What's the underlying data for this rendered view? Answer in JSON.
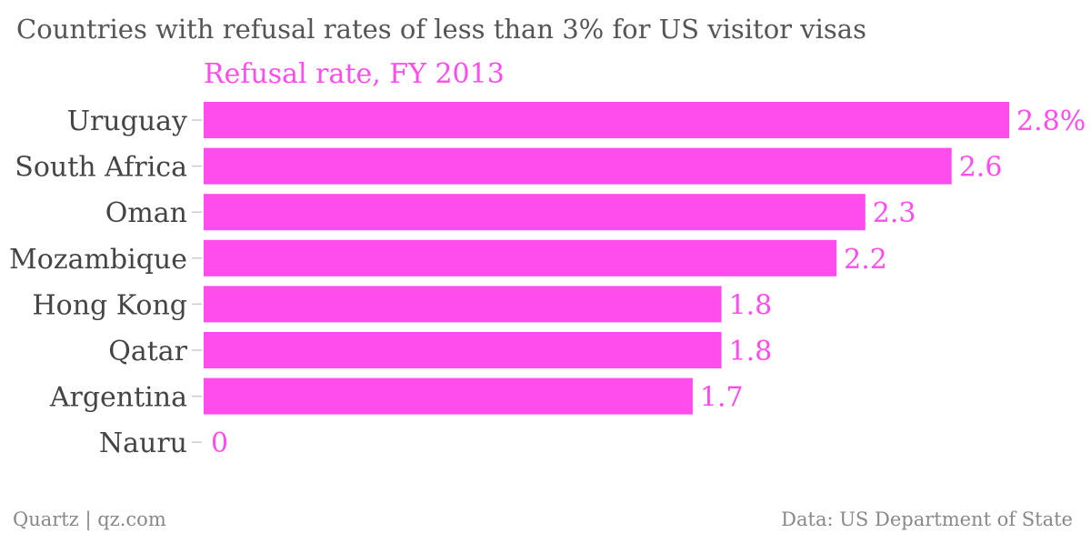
{
  "chart_data": {
    "type": "bar",
    "orientation": "horizontal",
    "title": "Countries with refusal rates of less than 3% for US visitor visas",
    "series": [
      {
        "name": "Refusal rate, FY 2013",
        "values": [
          2.8,
          2.6,
          2.3,
          2.2,
          1.8,
          1.8,
          1.7,
          0
        ]
      }
    ],
    "categories": [
      "Uruguay",
      "South Africa",
      "Oman",
      "Mozambique",
      "Hong Kong",
      "Qatar",
      "Argentina",
      "Nauru"
    ],
    "data_labels": [
      "2.8%",
      "2.6",
      "2.3",
      "2.2",
      "1.8",
      "1.8",
      "1.7",
      "0"
    ],
    "xlim": [
      0,
      2.8
    ],
    "grid": false,
    "legend": "top-left"
  },
  "footer": {
    "source_left": "Quartz | qz.com",
    "source_right": "Data: US Department of State"
  },
  "colors": {
    "bar": "#ff4ced",
    "series_label": "#ff4ced",
    "title": "#555555",
    "category_label": "#444444",
    "footer": "#888888",
    "tick": "#cccccc"
  }
}
